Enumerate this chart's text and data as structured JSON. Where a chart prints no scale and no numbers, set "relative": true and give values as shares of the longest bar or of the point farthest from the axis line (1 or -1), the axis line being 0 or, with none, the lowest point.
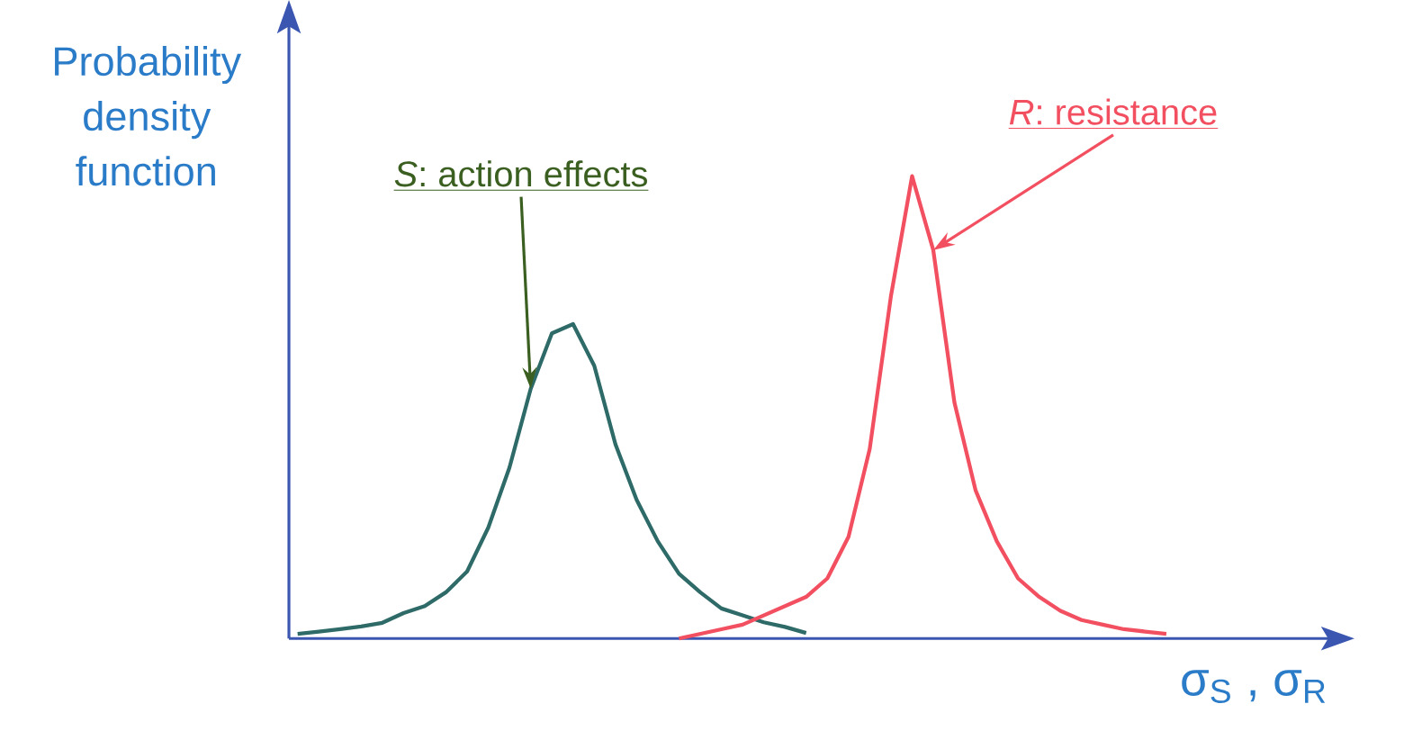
{
  "chart_data": {
    "type": "line",
    "relative": true,
    "ylabel": "Probability density function",
    "xlabel": "σ$_{S}$ , σ$_{R}$",
    "grid": false,
    "marker": "none",
    "line_style": "solid",
    "categories": [
      null,
      null,
      null,
      null,
      null,
      null,
      null,
      null,
      null,
      null,
      null,
      null,
      null,
      null,
      null,
      null,
      null,
      null,
      null,
      null,
      null,
      null,
      null,
      null,
      null,
      null,
      null,
      null,
      null,
      null,
      null,
      null,
      null,
      null,
      null,
      null,
      null,
      null,
      null,
      null,
      null,
      null
    ],
    "series": [
      {
        "color": "#2e6b68",
        "values": [
          0.01,
          0.015,
          0.02,
          0.026,
          0.034,
          0.055,
          0.07,
          0.1,
          0.145,
          0.24,
          0.37,
          0.54,
          0.66,
          0.68,
          0.59,
          0.42,
          0.3,
          0.21,
          0.14,
          0.1,
          0.065,
          0.05,
          0.035,
          0.025,
          0.012,
          null,
          null,
          null,
          null,
          null,
          null,
          null,
          null,
          null,
          null,
          null,
          null,
          null,
          null,
          null,
          null,
          null
        ]
      },
      {
        "color": "#f25060",
        "values": [
          null,
          null,
          null,
          null,
          null,
          null,
          null,
          null,
          null,
          null,
          null,
          null,
          null,
          null,
          null,
          null,
          null,
          null,
          0.0,
          0.01,
          0.02,
          0.03,
          0.05,
          0.07,
          0.09,
          0.13,
          0.22,
          0.41,
          0.74,
          1.0,
          0.84,
          0.51,
          0.32,
          0.21,
          0.13,
          0.09,
          0.06,
          0.04,
          0.03,
          0.02,
          0.015,
          0.01
        ]
      }
    ],
    "annotations": [
      "*S*: action effects",
      "*R*: resistance"
    ]
  }
}
